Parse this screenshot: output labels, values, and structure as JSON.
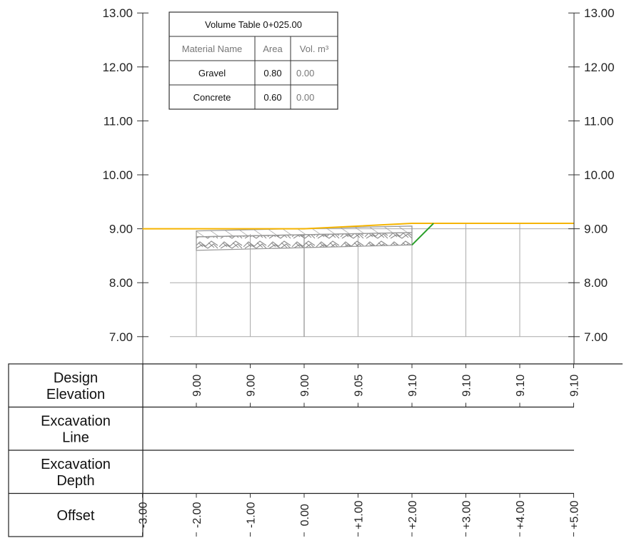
{
  "volume_table": {
    "title": "Volume Table 0+025.00",
    "headers": [
      "Material Name",
      "Area",
      "Vol. m³"
    ],
    "rows": [
      {
        "material": "Gravel",
        "area": "0.80",
        "volume": "0.00"
      },
      {
        "material": "Concrete",
        "area": "0.60",
        "volume": "0.00"
      }
    ]
  },
  "chart_data": {
    "type": "line",
    "title": "",
    "xlabel": "",
    "ylabel": "",
    "xlim": [
      -3,
      5
    ],
    "ylim": [
      7,
      13
    ],
    "y_ticks": [
      "13.00",
      "12.00",
      "11.00",
      "10.00",
      "9.00",
      "8.00",
      "7.00"
    ],
    "grid": true,
    "series": [
      {
        "role": "design-surface",
        "color": "#f5b400",
        "points": [
          [
            -3,
            9.0
          ],
          [
            0,
            9.0
          ],
          [
            2,
            9.1
          ],
          [
            5,
            9.1
          ]
        ]
      },
      {
        "role": "slope-line",
        "color": "#2aa02a",
        "points": [
          [
            2,
            8.7
          ],
          [
            2.4,
            9.1
          ]
        ]
      },
      {
        "role": "gravel-layer",
        "pattern": "hatch",
        "top": [
          [
            -2,
            8.96
          ],
          [
            2,
            9.05
          ]
        ],
        "bottom": [
          [
            -2,
            8.85
          ],
          [
            2,
            8.93
          ]
        ]
      },
      {
        "role": "concrete-layer",
        "pattern": "stone",
        "top": [
          [
            -2,
            8.85
          ],
          [
            2,
            8.93
          ]
        ],
        "bottom": [
          [
            -2,
            8.6
          ],
          [
            2,
            8.7
          ]
        ]
      }
    ]
  },
  "band_table": {
    "rows": [
      {
        "label_lines": [
          "Design",
          "Elevation"
        ],
        "values": [
          {
            "x": -2,
            "text": "9.00"
          },
          {
            "x": -1,
            "text": "9.00"
          },
          {
            "x": 0,
            "text": "9.00"
          },
          {
            "x": 1,
            "text": "9.05"
          },
          {
            "x": 2,
            "text": "9.10"
          },
          {
            "x": 3,
            "text": "9.10"
          },
          {
            "x": 4,
            "text": "9.10"
          },
          {
            "x": 5,
            "text": "9.10"
          }
        ]
      },
      {
        "label_lines": [
          "Excavation",
          "Line"
        ],
        "values": []
      },
      {
        "label_lines": [
          "Excavation",
          "Depth"
        ],
        "values": []
      },
      {
        "label_lines": [
          "Offset"
        ],
        "values": [
          {
            "x": -3,
            "text": "-3.00"
          },
          {
            "x": -2,
            "text": "-2.00"
          },
          {
            "x": -1,
            "text": "-1.00"
          },
          {
            "x": 0,
            "text": "0.00"
          },
          {
            "x": 1,
            "text": "+1.00"
          },
          {
            "x": 2,
            "text": "+2.00"
          },
          {
            "x": 3,
            "text": "+3.00"
          },
          {
            "x": 4,
            "text": "+4.00"
          },
          {
            "x": 5,
            "text": "+5.00"
          }
        ]
      }
    ]
  },
  "colors": {
    "grid": "#aaaaaa",
    "axis": "#333333",
    "table_border": "#333333",
    "muted_text": "#777777"
  }
}
